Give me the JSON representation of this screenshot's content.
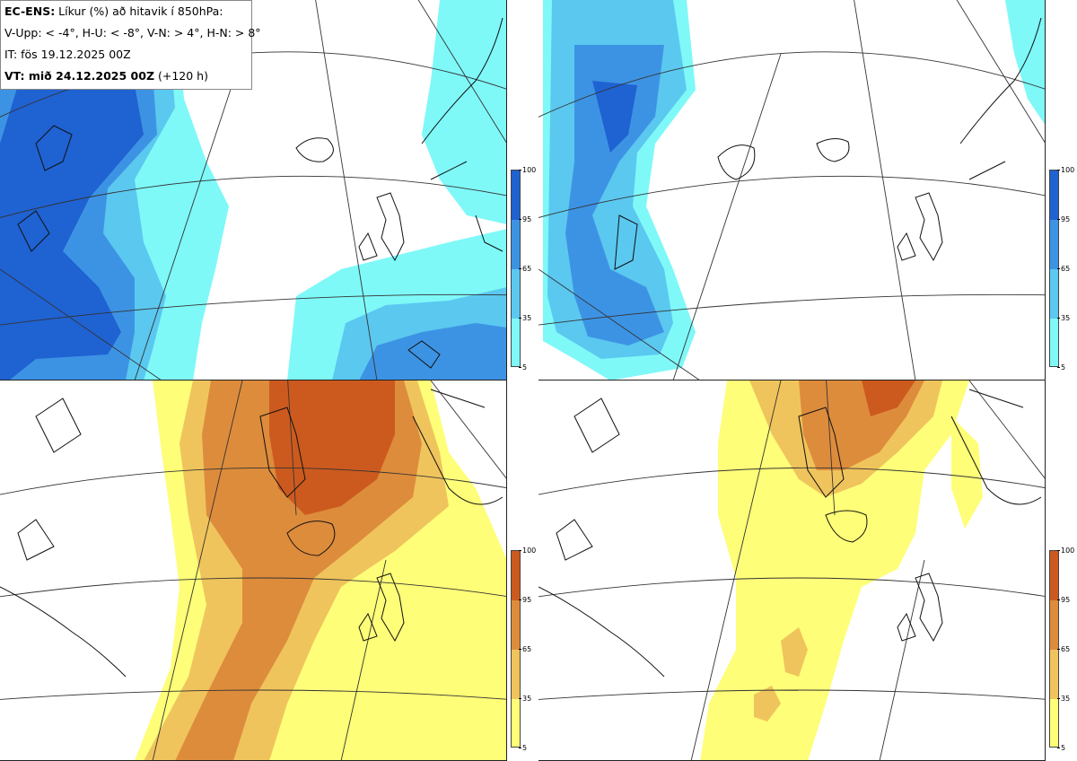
{
  "header": {
    "title_bold": "EC-ENS:",
    "title_rest": " Líkur (%) að hitavik í 850hPa:",
    "thresholds": "V-Upp: < -4°, H-U: < -8°, V-N: > 4°, H-N: > 8°",
    "init_time": "IT: fös 19.12.2025 00Z",
    "valid_bold": "VT: mið 24.12.2025 00Z",
    "valid_rest": " (+120 h)"
  },
  "colorbar_ticks": [
    "100",
    "95",
    "65",
    "35",
    "5"
  ],
  "palettes": {
    "cold": [
      "#7ff8f8",
      "#5bc8f0",
      "#3d93e3",
      "#1f62d2"
    ],
    "warm": [
      "#fefe78",
      "#f0c45c",
      "#dd8c3c",
      "#cc5a1e"
    ]
  },
  "panels": [
    {
      "id": "tl",
      "label": "V-Upp",
      "palette": "cold"
    },
    {
      "id": "tr",
      "label": "H-U",
      "palette": "cold"
    },
    {
      "id": "bl",
      "label": "V-N",
      "palette": "warm"
    },
    {
      "id": "br",
      "label": "H-N",
      "palette": "warm"
    }
  ]
}
